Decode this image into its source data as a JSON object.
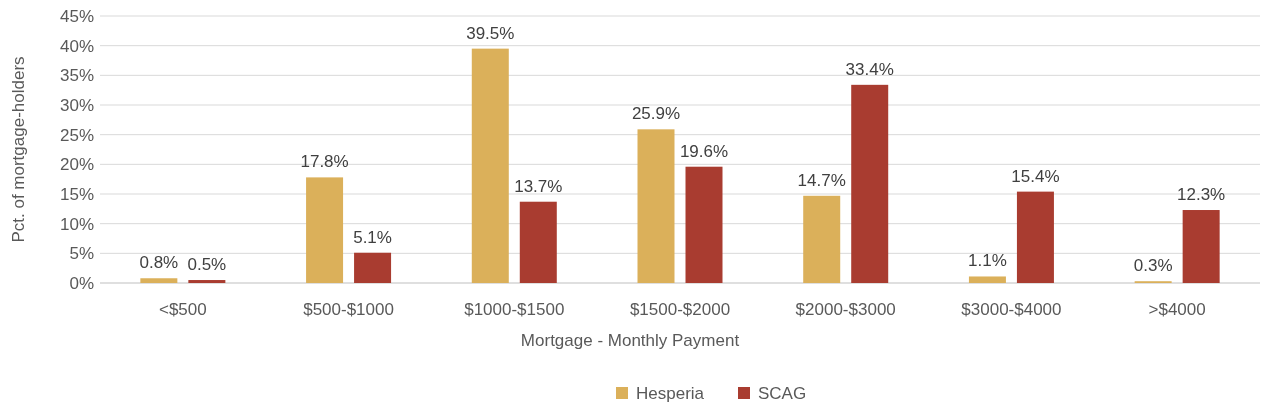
{
  "chart_data": {
    "type": "bar",
    "xlabel": "Mortgage - Monthly Payment",
    "ylabel": "Pct. of mortgage-holders",
    "categories": [
      "<$500",
      "$500-$1000",
      "$1000-$1500",
      "$1500-$2000",
      "$2000-$3000",
      "$3000-$4000",
      ">$4000"
    ],
    "series": [
      {
        "name": "Hesperia",
        "color": "#dbb05a",
        "values": [
          0.8,
          17.8,
          39.5,
          25.9,
          14.7,
          1.1,
          0.3
        ],
        "value_labels": [
          "0.8%",
          "17.8%",
          "39.5%",
          "25.9%",
          "14.7%",
          "1.1%",
          "0.3%"
        ]
      },
      {
        "name": "SCAG",
        "color": "#a93c30",
        "values": [
          0.5,
          5.1,
          13.7,
          19.6,
          33.4,
          15.4,
          12.3
        ],
        "value_labels": [
          "0.5%",
          "5.1%",
          "13.7%",
          "19.6%",
          "33.4%",
          "15.4%",
          "12.3%"
        ]
      }
    ],
    "ylim": [
      0,
      45
    ],
    "yticks": [
      {
        "value": 0,
        "label": "0%"
      },
      {
        "value": 5,
        "label": "5%"
      },
      {
        "value": 10,
        "label": "10%"
      },
      {
        "value": 15,
        "label": "15%"
      },
      {
        "value": 20,
        "label": "20%"
      },
      {
        "value": 25,
        "label": "25%"
      },
      {
        "value": 30,
        "label": "30%"
      },
      {
        "value": 35,
        "label": "35%"
      },
      {
        "value": 40,
        "label": "40%"
      },
      {
        "value": 45,
        "label": "45%"
      }
    ],
    "grid": "y",
    "legend": "bottom"
  }
}
